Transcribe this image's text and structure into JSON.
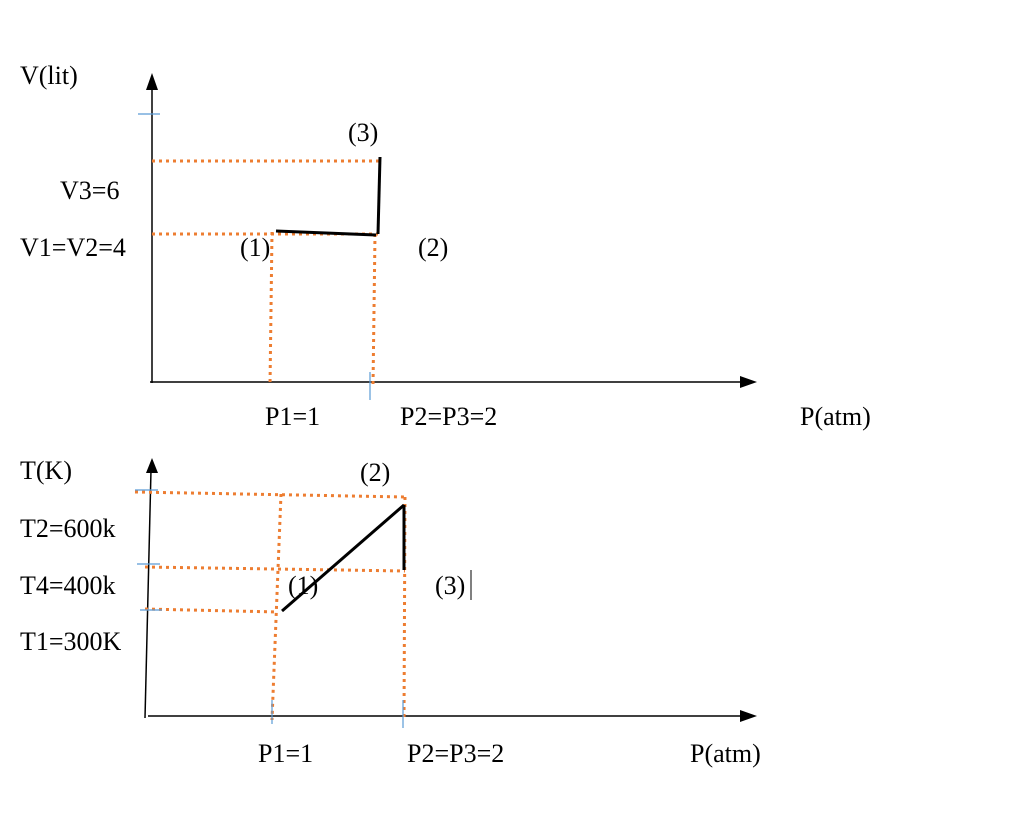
{
  "diagrams": [
    {
      "y_axis_label": "V(lit)",
      "x_axis_label": "P(atm)",
      "y_labels": [
        "V3=6",
        "V1=V2=4"
      ],
      "x_labels": [
        "P1=1",
        "P2=P3=2"
      ],
      "point_labels": [
        "(1)",
        "(2)",
        "(3)"
      ]
    },
    {
      "y_axis_label": "T(K)",
      "x_axis_label": "P(atm)",
      "y_labels": [
        "T2=600k",
        "T4=400k",
        "T1=300K"
      ],
      "x_labels": [
        "P1=1",
        "P2=P3=2"
      ],
      "point_labels": [
        "(1)",
        "(2)",
        "(3)"
      ]
    }
  ]
}
